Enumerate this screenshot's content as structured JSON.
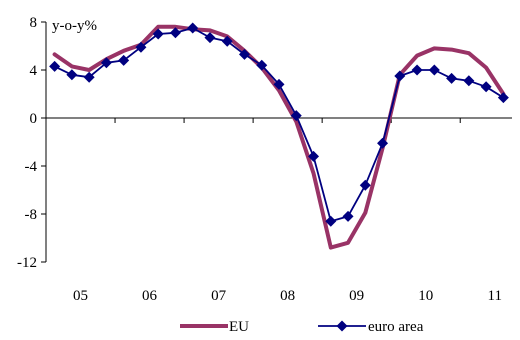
{
  "chart_data": {
    "type": "line",
    "title": "",
    "ylabel": "y-o-y%",
    "xlabel": "",
    "ylim": [
      -12,
      8
    ],
    "yticks": [
      -12,
      -8,
      -4,
      0,
      4,
      8
    ],
    "xlim": [
      2004.5,
      2011.25
    ],
    "xticks": [
      {
        "label": "05",
        "x": 2005.0
      },
      {
        "label": "06",
        "x": 2006.0
      },
      {
        "label": "07",
        "x": 2007.0
      },
      {
        "label": "08",
        "x": 2008.0
      },
      {
        "label": "09",
        "x": 2009.0
      },
      {
        "label": "10",
        "x": 2010.0
      },
      {
        "label": "11",
        "x": 2011.0
      }
    ],
    "x": [
      2004.625,
      2004.875,
      2005.125,
      2005.375,
      2005.625,
      2005.875,
      2006.125,
      2006.375,
      2006.625,
      2006.875,
      2007.125,
      2007.375,
      2007.625,
      2007.875,
      2008.125,
      2008.375,
      2008.625,
      2008.875,
      2009.125,
      2009.375,
      2009.625,
      2009.875,
      2010.125,
      2010.375,
      2010.625,
      2010.875,
      2011.125
    ],
    "series": [
      {
        "name": "EU",
        "color": "#993366",
        "marker": "none",
        "values": [
          5.3,
          4.3,
          4.0,
          4.9,
          5.6,
          6.1,
          7.6,
          7.6,
          7.4,
          7.3,
          6.8,
          5.6,
          4.2,
          2.3,
          -0.3,
          -4.6,
          -10.8,
          -10.4,
          -7.9,
          -2.5,
          3.6,
          5.2,
          5.8,
          5.7,
          5.4,
          4.2,
          2.0
        ]
      },
      {
        "name": "euro area",
        "color": "#000080",
        "marker": "diamond",
        "values": [
          4.3,
          3.6,
          3.4,
          4.6,
          4.8,
          5.9,
          7.0,
          7.1,
          7.5,
          6.7,
          6.4,
          5.3,
          4.4,
          2.8,
          0.2,
          -3.2,
          -8.6,
          -8.2,
          -5.6,
          -2.1,
          3.5,
          4.0,
          4.0,
          3.3,
          3.1,
          2.6,
          1.7
        ]
      }
    ],
    "grid": false,
    "legend": "bottom"
  }
}
